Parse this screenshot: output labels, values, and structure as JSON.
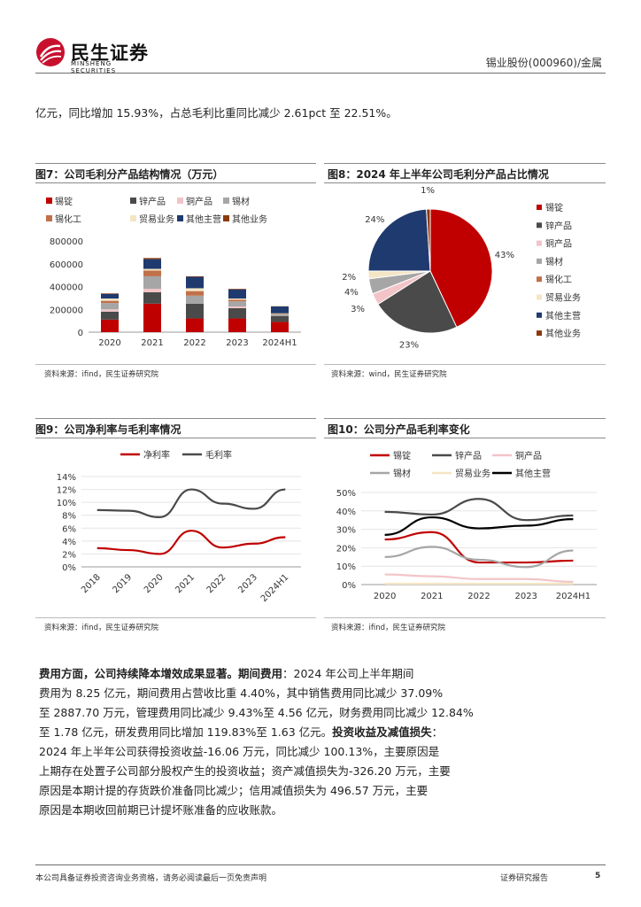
{
  "header": {
    "logo_cn": "民生证券",
    "logo_en": "MINSHENG SECURITIES",
    "right": "锡业股份(000960)/金属"
  },
  "intro_text": "亿元，同比增加 15.93%，占总毛利比重同比减少 2.61pct 至 22.51%。",
  "figures": {
    "fig7": {
      "title": "图7：公司毛利分产品结构情况（万元）",
      "source": "资料来源：ifind，民生证券研究院"
    },
    "fig8": {
      "title": "图8：2024 年上半年公司毛利分产品占比情况",
      "source": "资料来源：wind，民生证券研究院"
    },
    "fig9": {
      "title": "图9：公司净利率与毛利率情况",
      "source": "资料来源：ifind，民生证券研究院"
    },
    "fig10": {
      "title": "图10：公司分产品毛利率变化",
      "source": "资料来源：ifind，民生证券研究院"
    }
  },
  "colors": {
    "tin_ingot": "#c00000",
    "zinc": "#4a4a4a",
    "copper": "#f2c4c8",
    "tin_material": "#a6a6a6",
    "tin_chem": "#c0704a",
    "trade": "#f4e6c4",
    "other_main": "#1f3a6e",
    "other_biz": "#8b3a0e",
    "net_margin": "#c00000",
    "gross_margin": "#4a4a4a"
  },
  "chart_data": [
    {
      "type": "bar",
      "stacked": true,
      "categories": [
        "2020",
        "2021",
        "2022",
        "2023",
        "2024H1"
      ],
      "ylim": [
        0,
        800000
      ],
      "yticks": [
        "0",
        "200000",
        "400000",
        "600000",
        "800000"
      ],
      "series": [
        {
          "name": "锡锭",
          "values": [
            110000,
            250000,
            120000,
            120000,
            90000
          ]
        },
        {
          "name": "锌产品",
          "values": [
            70000,
            100000,
            130000,
            90000,
            50000
          ]
        },
        {
          "name": "铜产品",
          "values": [
            20000,
            30000,
            0,
            15000,
            0
          ]
        },
        {
          "name": "锡材",
          "values": [
            55000,
            110000,
            70000,
            45000,
            15000
          ]
        },
        {
          "name": "锡化工",
          "values": [
            20000,
            50000,
            40000,
            15000,
            5000
          ]
        },
        {
          "name": "贸易业务",
          "values": [
            20000,
            15000,
            25000,
            10000,
            5000
          ]
        },
        {
          "name": "其他主营",
          "values": [
            40000,
            85000,
            100000,
            80000,
            60000
          ]
        },
        {
          "name": "其他业务",
          "values": [
            5000,
            10000,
            5000,
            5000,
            2000
          ]
        }
      ]
    },
    {
      "type": "pie",
      "labels": [
        "锡锭",
        "锌产品",
        "铜产品",
        "锡材",
        "锡化工",
        "贸易业务",
        "其他主营",
        "其他业务"
      ],
      "values": [
        43,
        23,
        3,
        4,
        0,
        2,
        24,
        1
      ],
      "value_labels": [
        "43%",
        "23%",
        "3%",
        "4%",
        "",
        "2%",
        "24%",
        "1%"
      ]
    },
    {
      "type": "line",
      "categories": [
        "2018",
        "2019",
        "2020",
        "2021",
        "2022",
        "2023",
        "2024H1"
      ],
      "ylim": [
        0,
        14
      ],
      "yticks": [
        "0%",
        "2%",
        "4%",
        "6%",
        "8%",
        "10%",
        "12%",
        "14%"
      ],
      "series": [
        {
          "name": "净利率",
          "values": [
            2.9,
            2.6,
            2.0,
            5.6,
            3.0,
            3.6,
            4.6
          ]
        },
        {
          "name": "毛利率",
          "values": [
            8.8,
            8.7,
            7.7,
            12.0,
            9.8,
            9.0,
            12.0
          ]
        }
      ]
    },
    {
      "type": "line",
      "categories": [
        "2020",
        "2021",
        "2022",
        "2023",
        "2024H1"
      ],
      "ylim": [
        0,
        50
      ],
      "yticks": [
        "0%",
        "10%",
        "20%",
        "30%",
        "40%",
        "50%"
      ],
      "series": [
        {
          "name": "锡锭",
          "values": [
            24.5,
            28.5,
            12.0,
            12.0,
            13.0
          ]
        },
        {
          "name": "锌产品",
          "values": [
            39.5,
            38.0,
            46.5,
            35.0,
            37.5
          ]
        },
        {
          "name": "铜产品",
          "values": [
            5.5,
            4.5,
            3.0,
            3.0,
            1.5
          ]
        },
        {
          "name": "锡材",
          "values": [
            15.0,
            20.5,
            13.5,
            9.5,
            18.5
          ]
        },
        {
          "name": "贸易业务",
          "values": [
            0.5,
            0.5,
            0.5,
            0.5,
            0.5
          ]
        },
        {
          "name": "其他主营",
          "values": [
            27.0,
            36.5,
            30.5,
            32.0,
            35.5
          ]
        }
      ]
    }
  ],
  "body_text": {
    "b1": "费用方面，公司持续降本增效成果显著。",
    "b2": "期间费用",
    "t1": "：2024 年公司上半年期间",
    "l2": "费用为 8.25 亿元，期间费用占营收比重 4.40%，其中销售费用同比减少 37.09%",
    "l3": "至 2887.70 万元，管理费用同比减少 9.43%至 4.56 亿元，财务费用同比减少 12.84%",
    "l4a": "至 1.78 亿元，研发费用同比增加 119.83%至 1.63 亿元。",
    "l4b": "投资收益及减值损失",
    "l4c": "：",
    "l5": "2024 年上半年公司获得投资收益-16.06 万元，同比减少 100.13%，主要原因是",
    "l6": "上期存在处置子公司部分股权产生的投资收益；资产减值损失为-326.20 万元，主要",
    "l7": "原因是本期计提的存货跌价准备同比减少；信用减值损失为 496.57 万元，主要",
    "l8": "原因是本期收回前期已计提坏账准备的应收账款。"
  },
  "footer": {
    "left": "本公司具备证券投资咨询业务资格，请务必阅读最后一页免责声明",
    "right": "证券研究报告",
    "page": "5"
  }
}
